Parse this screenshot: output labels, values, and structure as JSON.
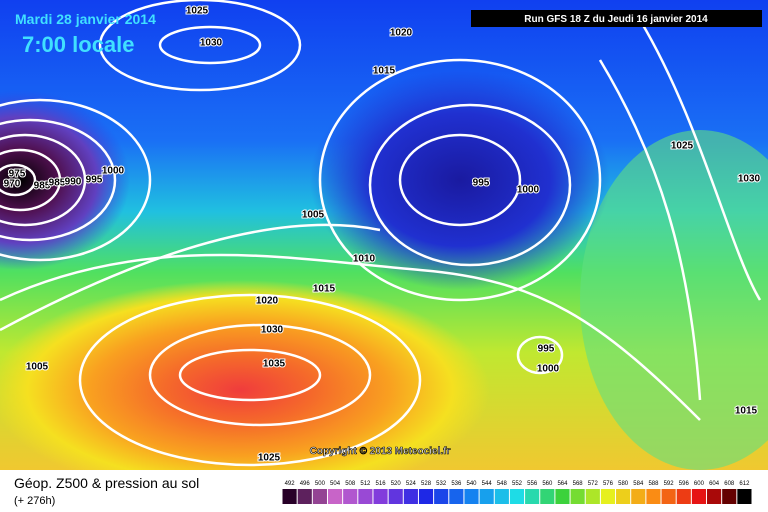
{
  "header": {
    "date": "Mardi 28 janvier 2014",
    "time": "7:00 locale",
    "run": "Run GFS 18 Z du Jeudi 16 janvier 2014"
  },
  "copyright": "Copyright © 2013 Meteociel.fr",
  "footer": {
    "title": "Géop. Z500 & pression au sol",
    "lead": "(+ 276h)"
  },
  "isobar_labels": [
    "1025",
    "1030",
    "1020",
    "1015",
    "975",
    "970",
    "985",
    "985",
    "990",
    "995",
    "1000",
    "995",
    "1000",
    "1025",
    "1030",
    "1005",
    "1010",
    "1020",
    "1015",
    "1030",
    "995",
    "1000",
    "1035",
    "1005",
    "1015",
    "1025"
  ],
  "colorbar": {
    "labels": [
      492,
      496,
      500,
      504,
      508,
      512,
      516,
      520,
      524,
      528,
      532,
      536,
      540,
      544,
      548,
      552,
      556,
      560,
      564,
      568,
      572,
      576,
      580,
      584,
      588,
      592,
      596,
      600,
      604,
      608,
      612
    ]
  }
}
